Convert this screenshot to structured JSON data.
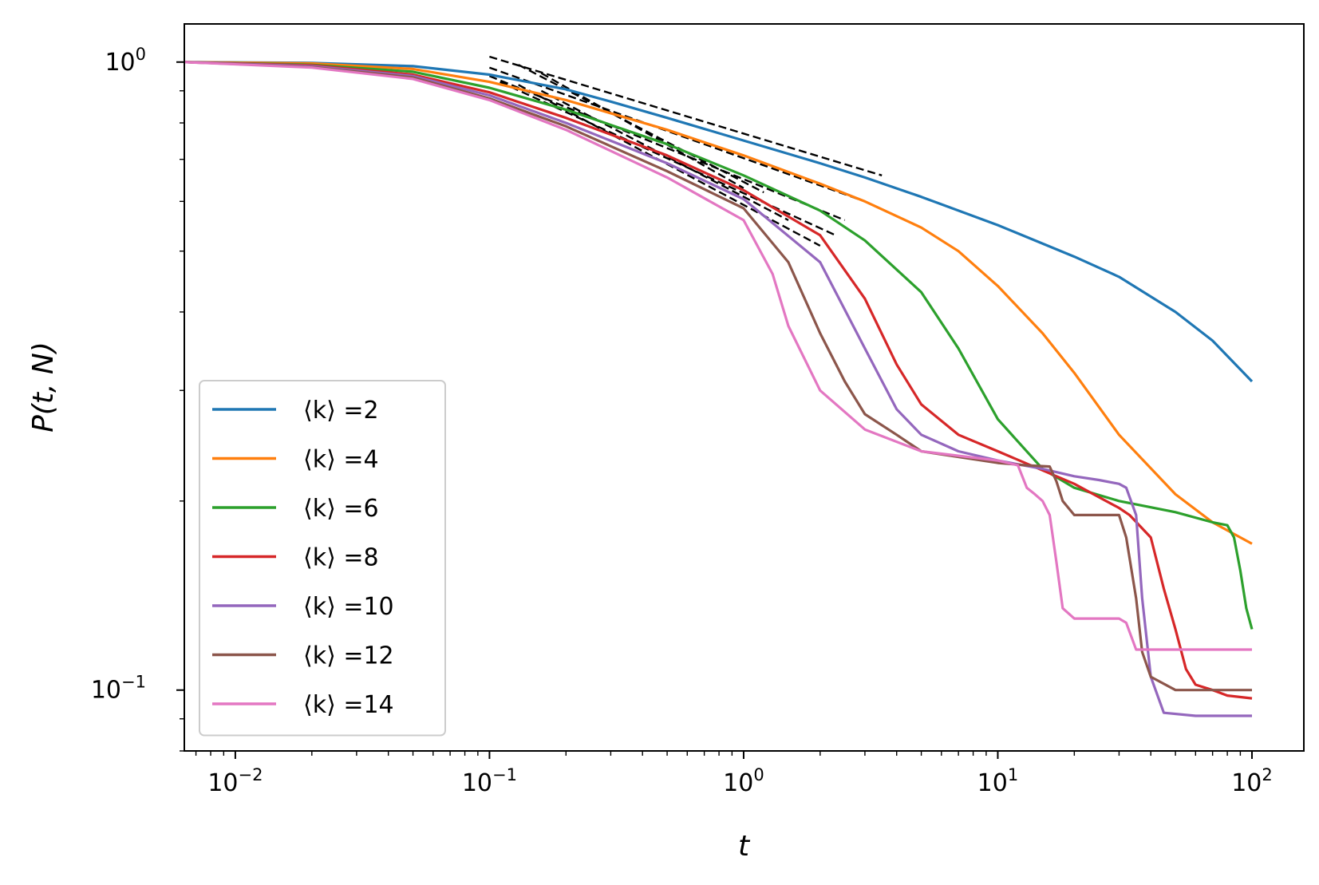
{
  "chart_data": {
    "type": "line",
    "xscale": "log",
    "yscale": "log",
    "xlim": [
      0.0063,
      160
    ],
    "ylim": [
      0.08,
      1.15
    ],
    "xlabel": "t",
    "ylabel": "P(t, N)",
    "x_ticks": [
      {
        "value": 0.01,
        "base": "10",
        "exp": "−2"
      },
      {
        "value": 0.1,
        "base": "10",
        "exp": "−1"
      },
      {
        "value": 1,
        "base": "10",
        "exp": "0"
      },
      {
        "value": 10,
        "base": "10",
        "exp": "1"
      },
      {
        "value": 100,
        "base": "10",
        "exp": "2"
      }
    ],
    "y_ticks": [
      {
        "value": 1,
        "base": "10",
        "exp": "0"
      },
      {
        "value": 0.1,
        "base": "10",
        "exp": "−1"
      }
    ],
    "legend_position": "lower-left",
    "series": [
      {
        "name": "⟨k⟩ =2",
        "color": "#1f77b4",
        "points": [
          [
            0.0063,
            1.0
          ],
          [
            0.02,
            0.997
          ],
          [
            0.05,
            0.985
          ],
          [
            0.1,
            0.955
          ],
          [
            0.2,
            0.905
          ],
          [
            0.3,
            0.865
          ],
          [
            0.5,
            0.815
          ],
          [
            1,
            0.75
          ],
          [
            2,
            0.69
          ],
          [
            3,
            0.655
          ],
          [
            5,
            0.61
          ],
          [
            10,
            0.55
          ],
          [
            20,
            0.49
          ],
          [
            30,
            0.455
          ],
          [
            50,
            0.4
          ],
          [
            70,
            0.36
          ],
          [
            100,
            0.31
          ]
        ]
      },
      {
        "name": "⟨k⟩ =4",
        "color": "#ff7f0e",
        "points": [
          [
            0.0063,
            1.0
          ],
          [
            0.02,
            0.995
          ],
          [
            0.05,
            0.975
          ],
          [
            0.1,
            0.93
          ],
          [
            0.2,
            0.87
          ],
          [
            0.5,
            0.78
          ],
          [
            1,
            0.71
          ],
          [
            2,
            0.64
          ],
          [
            3,
            0.6
          ],
          [
            5,
            0.545
          ],
          [
            7,
            0.5
          ],
          [
            10,
            0.44
          ],
          [
            15,
            0.37
          ],
          [
            20,
            0.32
          ],
          [
            30,
            0.255
          ],
          [
            50,
            0.205
          ],
          [
            70,
            0.185
          ],
          [
            100,
            0.171
          ]
        ]
      },
      {
        "name": "⟨k⟩ =6",
        "color": "#2ca02c",
        "points": [
          [
            0.0063,
            1.0
          ],
          [
            0.02,
            0.99
          ],
          [
            0.05,
            0.965
          ],
          [
            0.1,
            0.91
          ],
          [
            0.2,
            0.84
          ],
          [
            0.5,
            0.74
          ],
          [
            1,
            0.66
          ],
          [
            2,
            0.58
          ],
          [
            3,
            0.52
          ],
          [
            5,
            0.43
          ],
          [
            7,
            0.35
          ],
          [
            10,
            0.27
          ],
          [
            15,
            0.225
          ],
          [
            20,
            0.21
          ],
          [
            30,
            0.2
          ],
          [
            50,
            0.192
          ],
          [
            70,
            0.185
          ],
          [
            80,
            0.183
          ],
          [
            85,
            0.175
          ],
          [
            90,
            0.155
          ],
          [
            95,
            0.135
          ],
          [
            100,
            0.125
          ]
        ]
      },
      {
        "name": "⟨k⟩ =8",
        "color": "#d62728",
        "points": [
          [
            0.0063,
            1.0
          ],
          [
            0.02,
            0.988
          ],
          [
            0.05,
            0.955
          ],
          [
            0.1,
            0.895
          ],
          [
            0.2,
            0.815
          ],
          [
            0.5,
            0.71
          ],
          [
            1,
            0.625
          ],
          [
            2,
            0.53
          ],
          [
            3,
            0.42
          ],
          [
            4,
            0.33
          ],
          [
            5,
            0.285
          ],
          [
            7,
            0.255
          ],
          [
            10,
            0.24
          ],
          [
            20,
            0.213
          ],
          [
            30,
            0.195
          ],
          [
            33,
            0.19
          ],
          [
            40,
            0.175
          ],
          [
            45,
            0.145
          ],
          [
            50,
            0.125
          ],
          [
            55,
            0.108
          ],
          [
            60,
            0.102
          ],
          [
            70,
            0.1
          ],
          [
            80,
            0.098
          ],
          [
            100,
            0.097
          ]
        ]
      },
      {
        "name": "⟨k⟩ =10",
        "color": "#9467bd",
        "points": [
          [
            0.0063,
            1.0
          ],
          [
            0.02,
            0.985
          ],
          [
            0.05,
            0.95
          ],
          [
            0.1,
            0.885
          ],
          [
            0.2,
            0.8
          ],
          [
            0.5,
            0.69
          ],
          [
            1,
            0.605
          ],
          [
            2,
            0.48
          ],
          [
            3,
            0.35
          ],
          [
            4,
            0.28
          ],
          [
            5,
            0.255
          ],
          [
            7,
            0.24
          ],
          [
            10,
            0.232
          ],
          [
            15,
            0.225
          ],
          [
            20,
            0.219
          ],
          [
            25,
            0.216
          ],
          [
            30,
            0.213
          ],
          [
            32,
            0.21
          ],
          [
            35,
            0.19
          ],
          [
            37,
            0.14
          ],
          [
            40,
            0.105
          ],
          [
            45,
            0.092
          ],
          [
            60,
            0.091
          ],
          [
            100,
            0.091
          ]
        ]
      },
      {
        "name": "⟨k⟩ =12",
        "color": "#8c564b",
        "points": [
          [
            0.0063,
            1.0
          ],
          [
            0.02,
            0.982
          ],
          [
            0.05,
            0.945
          ],
          [
            0.1,
            0.875
          ],
          [
            0.2,
            0.79
          ],
          [
            0.5,
            0.67
          ],
          [
            1,
            0.585
          ],
          [
            1.5,
            0.48
          ],
          [
            2,
            0.37
          ],
          [
            2.5,
            0.31
          ],
          [
            3,
            0.275
          ],
          [
            4,
            0.255
          ],
          [
            5,
            0.24
          ],
          [
            10,
            0.23
          ],
          [
            13,
            0.228
          ],
          [
            16,
            0.227
          ],
          [
            17,
            0.215
          ],
          [
            18,
            0.2
          ],
          [
            20,
            0.19
          ],
          [
            25,
            0.19
          ],
          [
            30,
            0.19
          ],
          [
            32,
            0.175
          ],
          [
            35,
            0.14
          ],
          [
            37,
            0.115
          ],
          [
            40,
            0.105
          ],
          [
            50,
            0.1
          ],
          [
            100,
            0.1
          ]
        ]
      },
      {
        "name": "⟨k⟩ =14",
        "color": "#e377c2",
        "points": [
          [
            0.0063,
            1.0
          ],
          [
            0.02,
            0.98
          ],
          [
            0.05,
            0.94
          ],
          [
            0.1,
            0.87
          ],
          [
            0.2,
            0.78
          ],
          [
            0.5,
            0.655
          ],
          [
            1,
            0.56
          ],
          [
            1.3,
            0.46
          ],
          [
            1.5,
            0.38
          ],
          [
            2,
            0.3
          ],
          [
            3,
            0.26
          ],
          [
            5,
            0.24
          ],
          [
            10,
            0.232
          ],
          [
            12,
            0.228
          ],
          [
            13,
            0.21
          ],
          [
            14,
            0.205
          ],
          [
            15,
            0.2
          ],
          [
            16,
            0.19
          ],
          [
            17,
            0.16
          ],
          [
            18,
            0.135
          ],
          [
            20,
            0.13
          ],
          [
            30,
            0.13
          ],
          [
            32,
            0.128
          ],
          [
            35,
            0.116
          ],
          [
            100,
            0.116
          ]
        ]
      }
    ],
    "reference_lines": [
      {
        "style": "dashed",
        "color": "#000000",
        "points": [
          [
            0.1,
            1.02
          ],
          [
            3.5,
            0.66
          ]
        ]
      },
      {
        "style": "dashed",
        "color": "#000000",
        "points": [
          [
            0.1,
            0.98
          ],
          [
            3,
            0.6
          ]
        ]
      },
      {
        "style": "dashed",
        "color": "#000000",
        "points": [
          [
            0.1,
            0.95
          ],
          [
            2.5,
            0.56
          ]
        ]
      },
      {
        "style": "dashed",
        "color": "#000000",
        "points": [
          [
            0.11,
            0.93
          ],
          [
            2.3,
            0.53
          ]
        ]
      },
      {
        "style": "dashed",
        "color": "#000000",
        "points": [
          [
            0.13,
            0.92
          ],
          [
            2,
            0.51
          ]
        ]
      },
      {
        "style": "dashed",
        "color": "#000000",
        "points": [
          [
            0.16,
            0.9
          ],
          [
            1.5,
            0.56
          ]
        ]
      },
      {
        "style": "dashed",
        "color": "#000000",
        "points": [
          [
            0.13,
            0.99
          ],
          [
            1.2,
            0.62
          ]
        ]
      },
      {
        "style": "dashed",
        "color": "#000000",
        "points": [
          [
            0.16,
            0.96
          ],
          [
            1.0,
            0.63
          ]
        ]
      }
    ]
  }
}
